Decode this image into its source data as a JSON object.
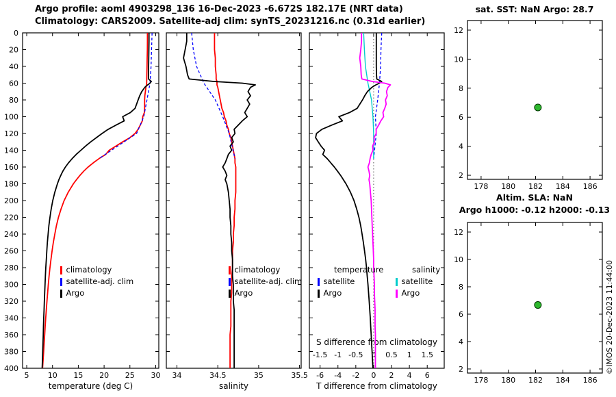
{
  "header": {
    "line1": "Argo profile: aoml 4903298_136 16-Dec-2023 -6.672S 182.17E (NRT data)",
    "line2": "Climatology: CARS2009. Satellite-adj clim: synTS_20231216.nc (0.31d earlier)"
  },
  "right_top": {
    "title": "sat. SST: NaN Argo: 28.7"
  },
  "right_bottom": {
    "title1": "Altim. SLA: NaN",
    "title2": "Argo h1000: -0.12 h2000: -0.13"
  },
  "credit": "©IMOS 20-Dec-2023 11:44:00",
  "colors": {
    "climatology": "#ff0000",
    "satellite_adj": "#0000ff",
    "argo": "#000000",
    "satellite_salinity": "#00cccc",
    "argo_salinity": "#ff00ff",
    "position_marker": "#2eb82e"
  },
  "legends": {
    "profile": {
      "items": [
        {
          "label": "climatology",
          "color": "#ff0000"
        },
        {
          "label": "satellite-adj. clim",
          "color": "#0000ff"
        },
        {
          "label": "Argo",
          "color": "#000000"
        }
      ]
    },
    "difference": {
      "temperature": {
        "header": "temperature",
        "items": [
          {
            "label": "satellite",
            "color": "#0000ff"
          },
          {
            "label": "Argo",
            "color": "#000000"
          }
        ]
      },
      "salinity": {
        "header": "salinity",
        "items": [
          {
            "label": "satellite",
            "color": "#00cccc"
          },
          {
            "label": "Argo",
            "color": "#ff00ff"
          }
        ]
      }
    }
  },
  "chart_data": [
    {
      "id": "temperature",
      "type": "line",
      "xlabel": "temperature (deg C)",
      "xlim": [
        4.2,
        30.6
      ],
      "xticks": [
        5,
        10,
        15,
        20,
        25,
        30
      ],
      "ylim": [
        0,
        400
      ],
      "y_inverted": true,
      "show_ytick_labels": true,
      "yticks": [
        0,
        20,
        40,
        60,
        80,
        100,
        120,
        140,
        160,
        180,
        200,
        220,
        240,
        260,
        280,
        300,
        320,
        340,
        360,
        380,
        400
      ],
      "series": [
        {
          "name": "climatology",
          "color": "#ff0000",
          "width": 1.8,
          "depth": [
            0,
            10,
            20,
            30,
            40,
            50,
            55,
            58,
            60,
            62,
            65,
            70,
            75,
            80,
            85,
            90,
            95,
            100,
            105,
            110,
            115,
            120,
            125,
            130,
            135,
            140,
            145,
            150,
            155,
            160,
            165,
            170,
            175,
            180,
            190,
            200,
            210,
            220,
            230,
            240,
            250,
            260,
            270,
            280,
            290,
            300,
            310,
            320,
            330,
            340,
            350,
            360,
            370,
            380,
            390,
            400
          ],
          "values": [
            28.4,
            28.4,
            28.38,
            28.35,
            28.32,
            28.28,
            28.27,
            28.25,
            28.25,
            28.2,
            28.1,
            28.0,
            27.9,
            27.85,
            27.85,
            27.85,
            27.8,
            27.5,
            27.4,
            27.0,
            26.6,
            26.0,
            25.0,
            23.6,
            22.3,
            21.0,
            20.3,
            19.0,
            17.9,
            16.9,
            16.05,
            15.3,
            14.65,
            14.05,
            13.05,
            12.25,
            11.65,
            11.15,
            10.75,
            10.45,
            10.15,
            9.92,
            9.7,
            9.5,
            9.34,
            9.19,
            9.05,
            8.92,
            8.8,
            8.68,
            8.58,
            8.48,
            8.38,
            8.28,
            8.18,
            8.08
          ]
        },
        {
          "name": "satellite-adj. clim",
          "color": "#0000ff",
          "width": 1.3,
          "dash": "4,3",
          "depth": [
            0,
            20,
            40,
            60,
            80,
            100,
            120,
            150
          ],
          "values": [
            29.3,
            29.2,
            29.1,
            28.9,
            28.3,
            27.7,
            26.3,
            19.0
          ]
        },
        {
          "name": "Argo",
          "color": "#000000",
          "width": 1.8,
          "depth": [
            0,
            10,
            20,
            30,
            40,
            50,
            55,
            58,
            60,
            62,
            65,
            70,
            75,
            80,
            85,
            90,
            95,
            100,
            105,
            110,
            115,
            120,
            125,
            130,
            135,
            140,
            145,
            150,
            155,
            160,
            165,
            170,
            175,
            180,
            190,
            200,
            210,
            220,
            230,
            240,
            250,
            260,
            270,
            280,
            290,
            300,
            310,
            320,
            330,
            340,
            350,
            360,
            370,
            380,
            390,
            400
          ],
          "values": [
            28.7,
            28.7,
            28.68,
            28.65,
            28.62,
            28.6,
            28.62,
            29.15,
            28.9,
            28.45,
            27.9,
            27.3,
            26.9,
            26.6,
            26.3,
            26.0,
            25.1,
            23.6,
            23.9,
            22.3,
            20.8,
            19.6,
            18.5,
            17.4,
            16.4,
            15.5,
            14.6,
            13.8,
            13.1,
            12.5,
            12.0,
            11.6,
            11.25,
            10.95,
            10.45,
            10.05,
            9.75,
            9.5,
            9.3,
            9.15,
            9.0,
            8.9,
            8.8,
            8.7,
            8.62,
            8.55,
            8.48,
            8.42,
            8.36,
            8.3,
            8.25,
            8.2,
            8.15,
            8.1,
            8.05,
            8.0
          ]
        }
      ]
    },
    {
      "id": "salinity",
      "type": "line",
      "xlabel": "salinity",
      "xlim": [
        33.87,
        35.52
      ],
      "xticks": [
        34,
        34.5,
        35,
        35.5
      ],
      "ylim": [
        0,
        400
      ],
      "y_inverted": true,
      "show_ytick_labels": false,
      "yticks": [
        0,
        20,
        40,
        60,
        80,
        100,
        120,
        140,
        160,
        180,
        200,
        220,
        240,
        260,
        280,
        300,
        320,
        340,
        360,
        380,
        400
      ],
      "series": [
        {
          "name": "climatology",
          "color": "#ff0000",
          "width": 1.8,
          "depth": [
            0,
            10,
            20,
            30,
            40,
            50,
            55,
            58,
            60,
            62,
            65,
            70,
            75,
            80,
            85,
            90,
            95,
            100,
            105,
            110,
            115,
            120,
            125,
            130,
            135,
            140,
            145,
            150,
            155,
            160,
            165,
            170,
            175,
            180,
            190,
            200,
            210,
            220,
            230,
            240,
            250,
            260,
            270,
            280,
            290,
            300,
            310,
            320,
            330,
            340,
            350,
            360,
            370,
            380,
            390,
            400
          ],
          "values": [
            34.46,
            34.46,
            34.46,
            34.47,
            34.47,
            34.48,
            34.48,
            34.49,
            34.49,
            34.49,
            34.5,
            34.51,
            34.52,
            34.53,
            34.54,
            34.55,
            34.57,
            34.58,
            34.6,
            34.61,
            34.63,
            34.64,
            34.66,
            34.67,
            34.68,
            34.69,
            34.7,
            34.71,
            34.71,
            34.72,
            34.72,
            34.72,
            34.72,
            34.72,
            34.72,
            34.71,
            34.71,
            34.7,
            34.7,
            34.69,
            34.69,
            34.68,
            34.68,
            34.68,
            34.67,
            34.67,
            34.67,
            34.66,
            34.66,
            34.66,
            34.66,
            34.65,
            34.65,
            34.65,
            34.65,
            34.65
          ]
        },
        {
          "name": "satellite-adj. clim",
          "color": "#0000ff",
          "width": 1.3,
          "dash": "4,3",
          "depth": [
            0,
            20,
            40,
            60,
            80,
            100,
            120,
            150
          ],
          "values": [
            34.18,
            34.2,
            34.24,
            34.33,
            34.47,
            34.56,
            34.64,
            34.71
          ]
        },
        {
          "name": "Argo",
          "color": "#000000",
          "width": 1.8,
          "depth": [
            0,
            10,
            20,
            30,
            40,
            50,
            55,
            58,
            60,
            62,
            65,
            70,
            75,
            80,
            85,
            90,
            95,
            100,
            105,
            110,
            115,
            120,
            125,
            130,
            135,
            140,
            145,
            150,
            155,
            160,
            165,
            170,
            175,
            180,
            190,
            200,
            210,
            220,
            230,
            240,
            250,
            260,
            270,
            280,
            290,
            300,
            310,
            320,
            330,
            340,
            350,
            360,
            370,
            380,
            390,
            400
          ],
          "values": [
            34.12,
            34.12,
            34.1,
            34.08,
            34.11,
            34.13,
            34.15,
            34.45,
            34.8,
            34.96,
            34.9,
            34.87,
            34.9,
            34.86,
            34.89,
            34.86,
            34.83,
            34.86,
            34.8,
            34.75,
            34.7,
            34.71,
            34.67,
            34.69,
            34.65,
            34.67,
            34.63,
            34.61,
            34.59,
            34.56,
            34.59,
            34.61,
            34.59,
            34.61,
            34.63,
            34.64,
            34.65,
            34.65,
            34.66,
            34.66,
            34.67,
            34.67,
            34.68,
            34.68,
            34.68,
            34.69,
            34.69,
            34.69,
            34.7,
            34.7,
            34.7,
            34.7,
            34.7,
            34.7,
            34.7,
            34.7
          ]
        }
      ]
    },
    {
      "id": "t_difference",
      "type": "line",
      "xlabel": "T difference from climatology",
      "xlim": [
        -7.2,
        7.9
      ],
      "xticks": [
        -6,
        -4,
        -2,
        0,
        2,
        4,
        6
      ],
      "top_axis": {
        "label": "S difference from climatology",
        "ticks": [
          -1.5,
          -1,
          -0.5,
          0,
          0.5,
          1,
          1.5
        ],
        "scale": 4
      },
      "ylim": [
        0,
        400
      ],
      "y_inverted": true,
      "show_ytick_labels": false,
      "yticks": [
        0,
        20,
        40,
        60,
        80,
        100,
        120,
        140,
        160,
        180,
        200,
        220,
        240,
        260,
        280,
        300,
        320,
        340,
        360,
        380,
        400
      ],
      "series": [
        {
          "name": "zero reference",
          "color": "#555555",
          "width": 1,
          "dash": "1.5,3",
          "depth": [
            0,
            400
          ],
          "values": [
            0,
            0
          ]
        },
        {
          "name": "satellite T diff",
          "color": "#0000ff",
          "width": 1.3,
          "dash": "4,3",
          "depth": [
            0,
            20,
            40,
            60,
            80,
            100,
            120,
            150
          ],
          "values": [
            0.9,
            0.82,
            0.78,
            0.65,
            0.45,
            0.2,
            0.3,
            0.0
          ]
        },
        {
          "name": "satellite S diff",
          "color": "#00cccc",
          "width": 1.4,
          "xscale": 4,
          "depth": [
            0,
            20,
            40,
            60,
            80,
            100,
            120,
            150
          ],
          "values": [
            -0.28,
            -0.26,
            -0.23,
            -0.16,
            -0.06,
            -0.02,
            0.0,
            0.0
          ]
        },
        {
          "name": "Argo T diff",
          "color": "#000000",
          "width": 1.8,
          "depth": [
            0,
            10,
            20,
            30,
            40,
            50,
            55,
            58,
            60,
            62,
            65,
            70,
            75,
            80,
            85,
            90,
            95,
            100,
            105,
            110,
            115,
            120,
            125,
            130,
            135,
            140,
            145,
            150,
            155,
            160,
            165,
            170,
            175,
            180,
            190,
            200,
            210,
            220,
            230,
            240,
            250,
            260,
            270,
            280,
            290,
            300,
            310,
            320,
            330,
            340,
            350,
            360,
            370,
            380,
            390,
            400
          ],
          "values": [
            0.3,
            0.3,
            0.3,
            0.3,
            0.3,
            0.32,
            0.35,
            0.9,
            0.65,
            0.25,
            -0.2,
            -0.7,
            -1.0,
            -1.25,
            -1.55,
            -1.85,
            -2.7,
            -3.9,
            -3.5,
            -4.7,
            -5.8,
            -6.4,
            -6.5,
            -6.2,
            -5.9,
            -5.5,
            -5.7,
            -5.2,
            -4.8,
            -4.4,
            -4.05,
            -3.7,
            -3.4,
            -3.1,
            -2.6,
            -2.2,
            -1.9,
            -1.65,
            -1.45,
            -1.3,
            -1.15,
            -1.02,
            -0.9,
            -0.8,
            -0.72,
            -0.64,
            -0.57,
            -0.5,
            -0.44,
            -0.38,
            -0.33,
            -0.28,
            -0.23,
            -0.18,
            -0.13,
            -0.08
          ]
        },
        {
          "name": "Argo S diff",
          "color": "#ff00ff",
          "width": 1.8,
          "xscale": 4,
          "depth": [
            0,
            10,
            20,
            30,
            40,
            50,
            55,
            58,
            60,
            62,
            65,
            70,
            75,
            80,
            85,
            90,
            95,
            100,
            105,
            110,
            115,
            120,
            125,
            130,
            135,
            140,
            145,
            150,
            155,
            160,
            165,
            170,
            175,
            180,
            190,
            200,
            210,
            220,
            230,
            240,
            250,
            260,
            270,
            280,
            290,
            300,
            310,
            320,
            330,
            340,
            350,
            360,
            370,
            380,
            390,
            400
          ],
          "values": [
            -0.34,
            -0.34,
            -0.36,
            -0.39,
            -0.36,
            -0.35,
            -0.33,
            -0.04,
            0.31,
            0.47,
            0.4,
            0.36,
            0.38,
            0.33,
            0.35,
            0.31,
            0.26,
            0.28,
            0.2,
            0.14,
            0.07,
            0.07,
            0.01,
            0.02,
            -0.03,
            -0.02,
            -0.07,
            -0.1,
            -0.12,
            -0.16,
            -0.13,
            -0.11,
            -0.13,
            -0.11,
            -0.09,
            -0.07,
            -0.06,
            -0.05,
            -0.04,
            -0.03,
            -0.02,
            -0.01,
            0.0,
            0.0,
            0.01,
            0.02,
            0.02,
            0.03,
            0.04,
            0.04,
            0.04,
            0.05,
            0.05,
            0.05,
            0.05,
            0.05
          ]
        }
      ]
    },
    {
      "id": "sst_map",
      "type": "scatter",
      "xlim": [
        177,
        186.9
      ],
      "xticks": [
        178,
        180,
        182,
        184,
        186
      ],
      "ylim": [
        1.72,
        12.66
      ],
      "y_inverted": false,
      "show_ytick_labels": true,
      "yticks": [
        2,
        4,
        6,
        8,
        10,
        12
      ],
      "point": {
        "x": 182.17,
        "y": 6.672,
        "color": "#2eb82e"
      }
    },
    {
      "id": "sla_map",
      "type": "scatter",
      "xlim": [
        177,
        186.9
      ],
      "xticks": [
        178,
        180,
        182,
        184,
        186
      ],
      "ylim": [
        1.7,
        12.7
      ],
      "y_inverted": false,
      "show_ytick_labels": true,
      "yticks": [
        2,
        4,
        6,
        8,
        10,
        12
      ],
      "point": {
        "x": 182.17,
        "y": 6.672,
        "color": "#2eb82e"
      }
    }
  ]
}
